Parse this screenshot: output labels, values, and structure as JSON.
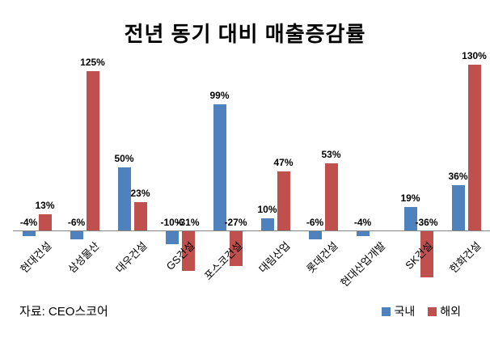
{
  "title": "전년 동기 대비 매출증감률",
  "source_note": "자료: CEO스코어",
  "chart_data": {
    "type": "bar",
    "title": "전년 동기 대비 매출증감률",
    "categories": [
      "현대건설",
      "삼성물산",
      "대우건설",
      "GS건설",
      "포스코건설",
      "대림산업",
      "롯데건설",
      "현대산업개발",
      "SK건설",
      "한화건설"
    ],
    "series": [
      {
        "name": "국내",
        "color": "#4F81BD",
        "values": [
          -4,
          -6,
          50,
          -10,
          99,
          10,
          -6,
          -4,
          19,
          36
        ]
      },
      {
        "name": "해외",
        "color": "#C0504D",
        "values": [
          13,
          125,
          23,
          -31,
          -27,
          47,
          53,
          null,
          -36,
          130
        ]
      }
    ],
    "value_suffix": "%",
    "data_labels": true,
    "xlabel": "",
    "ylabel": "",
    "ylim": [
      -40,
      146
    ],
    "grid": false,
    "y_axis_visible": false,
    "axis_line_color": "#868686",
    "legend_position": "bottom-right",
    "category_label_rotation_deg": -45
  }
}
